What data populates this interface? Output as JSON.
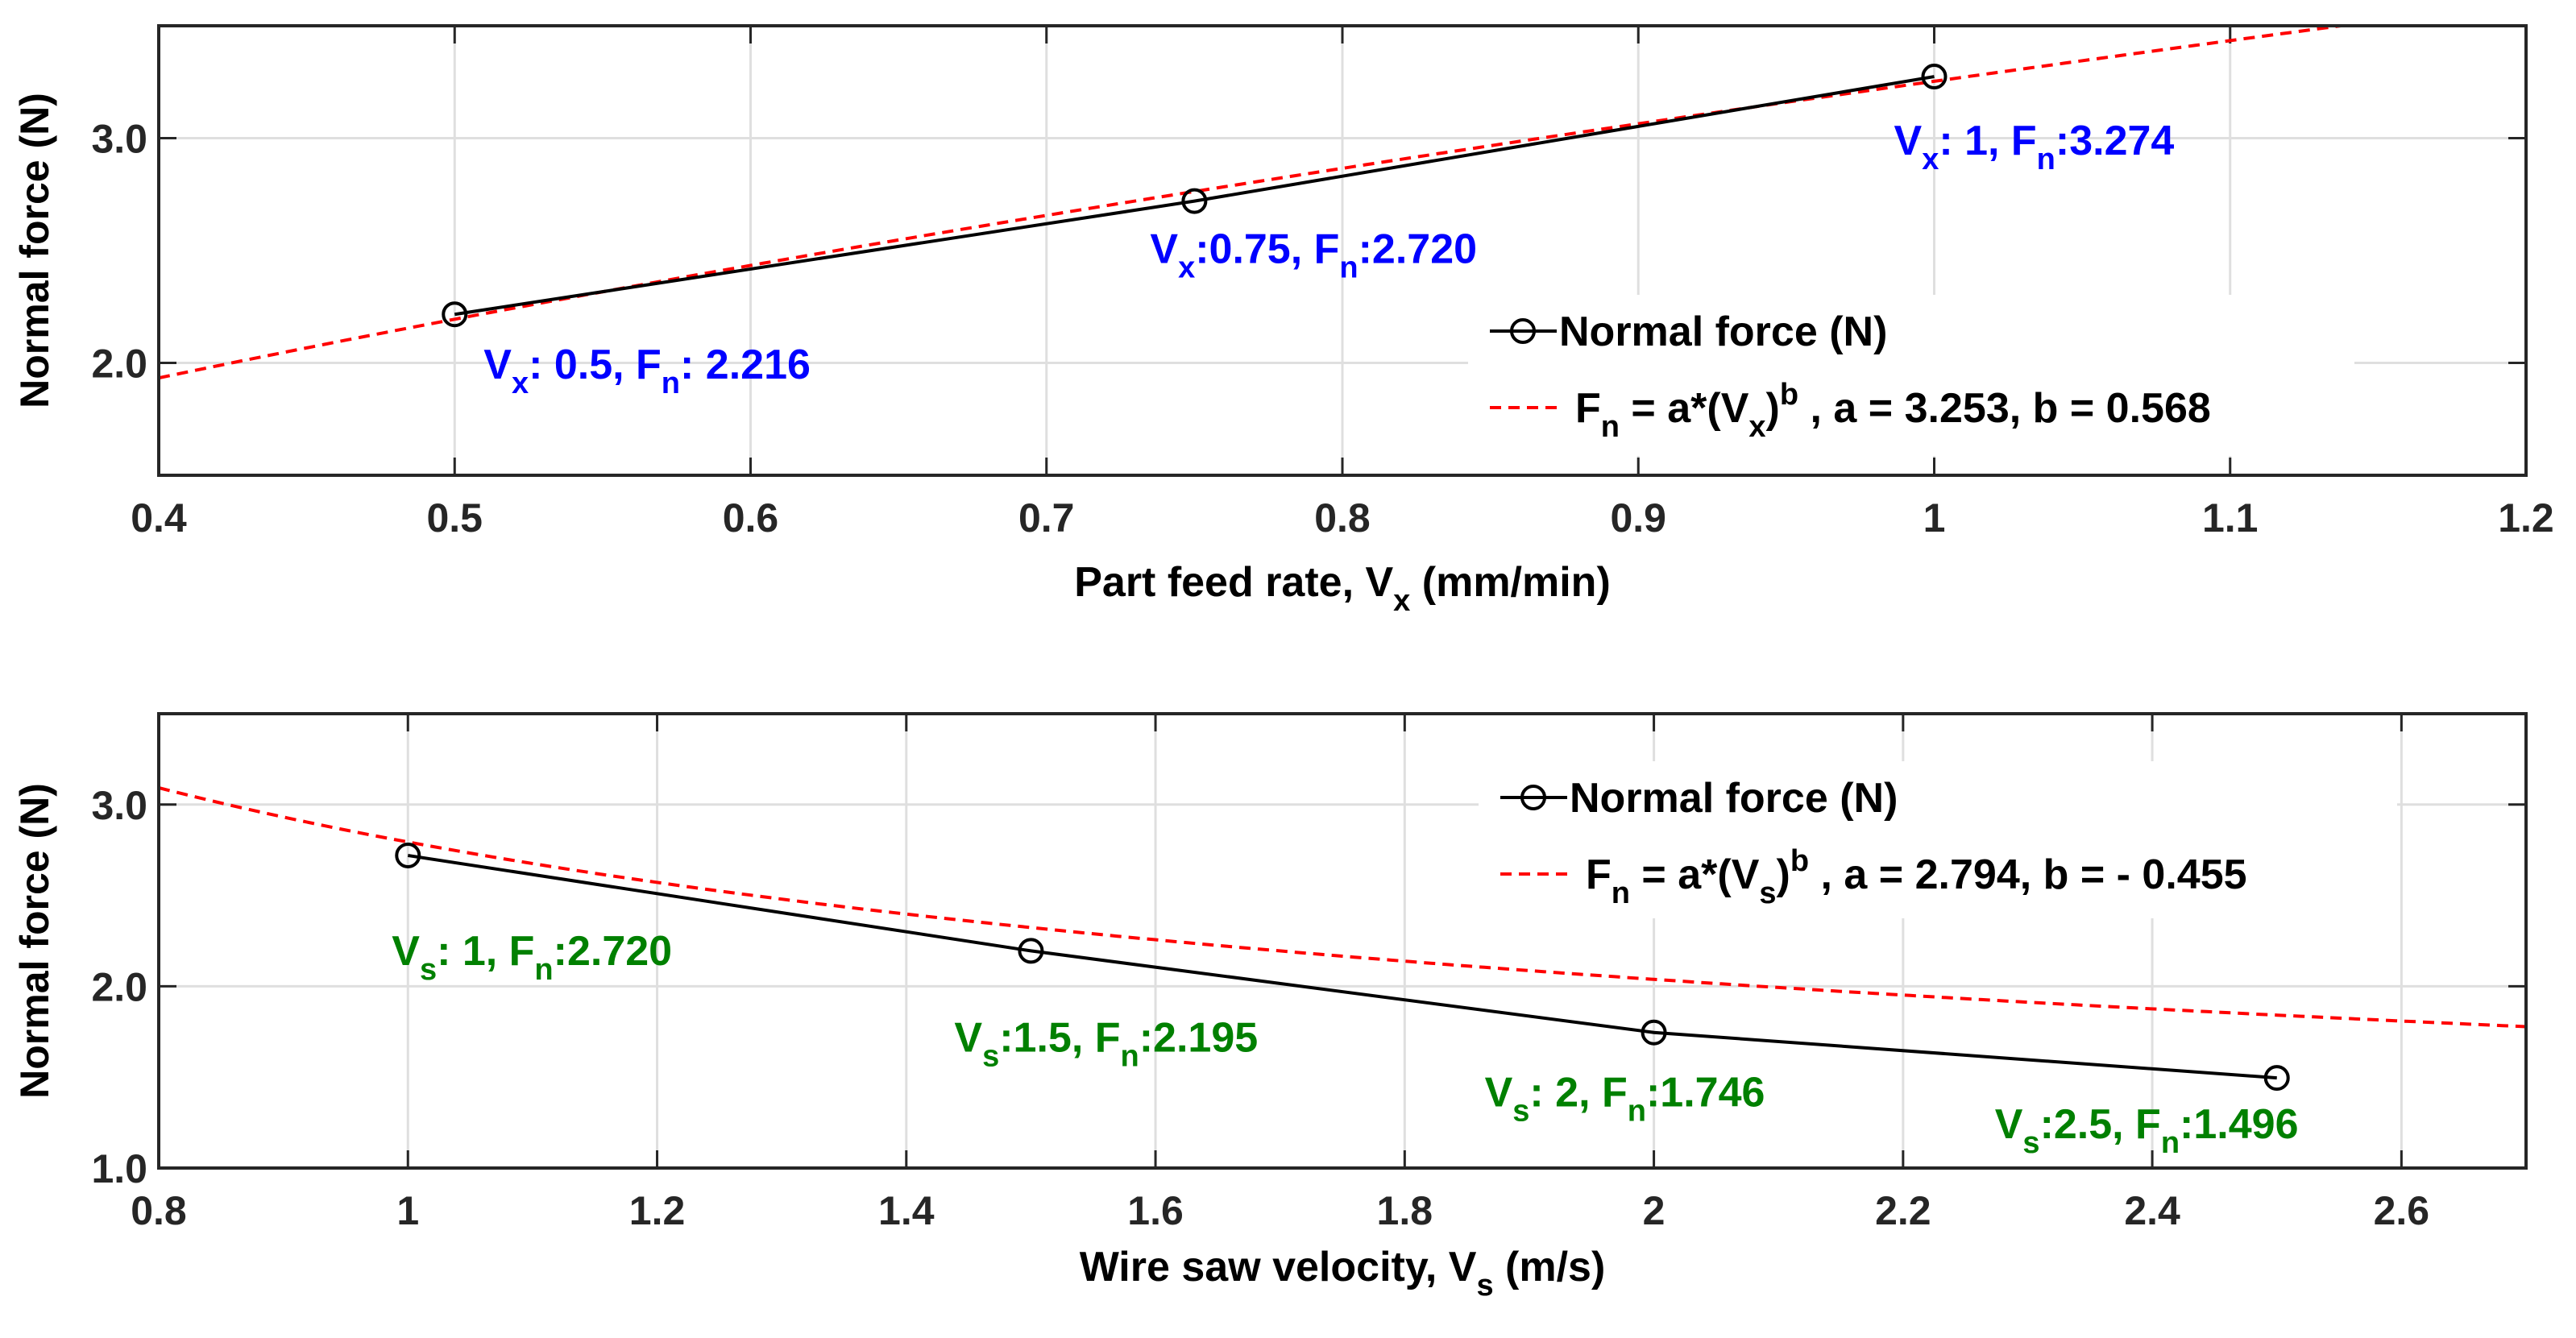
{
  "chart_data": [
    {
      "type": "line",
      "xlabel_parts": [
        "Part feed rate, V",
        "x",
        " (mm/min)"
      ],
      "ylabel": "Normal force (N)",
      "xlim": [
        0.4,
        1.2
      ],
      "ylim": [
        1.5,
        3.5
      ],
      "xticks": [
        0.4,
        0.5,
        0.6,
        0.7,
        0.8,
        0.9,
        1,
        1.1,
        1.2
      ],
      "xtick_labels": [
        "0.4",
        "0.5",
        "0.6",
        "0.7",
        "0.8",
        "0.9",
        "1",
        "1.1",
        "1.2"
      ],
      "yticks": [
        2.0,
        3.0
      ],
      "ytick_labels": [
        "2.0",
        "3.0"
      ],
      "grid": true,
      "label_color": "#0000ff",
      "series": [
        {
          "name": "Normal force (N)",
          "style": "solid-circle",
          "color": "#000000",
          "x": [
            0.5,
            0.75,
            1.0
          ],
          "y": [
            2.216,
            2.72,
            3.274
          ]
        },
        {
          "style": "dashed",
          "color": "#ff0000",
          "fit": {
            "a": 3.253,
            "b": 0.568,
            "x_range": [
              0.4,
              1.2
            ]
          }
        }
      ],
      "legend": {
        "location": "bottom-right",
        "entries": [
          [
            "Normal force (N)"
          ],
          [
            "F",
            "n",
            " = a*(V",
            "x",
            ")",
            "b",
            " , a = 3.253, b = 0.568"
          ]
        ]
      },
      "annotations": [
        {
          "x": 0.5,
          "y": 2.216,
          "parts": [
            "V",
            "x",
            ": 0.5, F",
            "n",
            ": 2.216"
          ]
        },
        {
          "x": 0.75,
          "y": 2.72,
          "parts": [
            "V",
            "x",
            ":0.75, F",
            "n",
            ":2.720"
          ]
        },
        {
          "x": 1.0,
          "y": 3.274,
          "parts": [
            "V",
            "x",
            ":   1, F",
            "n",
            ":3.274"
          ]
        }
      ]
    },
    {
      "type": "line",
      "xlabel_parts": [
        "Wire saw velocity, V",
        "s",
        " (m/s)"
      ],
      "ylabel": "Normal force (N)",
      "xlim": [
        0.8,
        2.7
      ],
      "ylim": [
        1.0,
        3.5
      ],
      "xticks": [
        0.8,
        1,
        1.2,
        1.4,
        1.6,
        1.8,
        2,
        2.2,
        2.4,
        2.6
      ],
      "xtick_labels": [
        "0.8",
        "1",
        "1.2",
        "1.4",
        "1.6",
        "1.8",
        "2",
        "2.2",
        "2.4",
        "2.6"
      ],
      "yticks": [
        1.0,
        2.0,
        3.0
      ],
      "ytick_labels": [
        "1.0",
        "2.0",
        "3.0"
      ],
      "grid": true,
      "label_color": "#008000",
      "series": [
        {
          "name": "Normal force (N)",
          "style": "solid-circle",
          "color": "#000000",
          "x": [
            1.0,
            1.5,
            2.0,
            2.5
          ],
          "y": [
            2.72,
            2.195,
            1.746,
            1.496
          ]
        },
        {
          "style": "dashed",
          "color": "#ff0000",
          "fit": {
            "a": 2.794,
            "b": -0.455,
            "x_range": [
              0.8,
              2.7
            ]
          }
        }
      ],
      "legend": {
        "location": "top-right",
        "entries": [
          [
            "Normal force (N)"
          ],
          [
            "F",
            "n",
            " = a*(V",
            "s",
            ")",
            "b",
            " , a = 2.794, b = - 0.455"
          ]
        ]
      },
      "annotations": [
        {
          "x": 1.0,
          "y": 2.72,
          "parts": [
            "V",
            "s",
            ":  1, F",
            "n",
            ":2.720"
          ]
        },
        {
          "x": 1.5,
          "y": 2.195,
          "parts": [
            "V",
            "s",
            ":1.5, F",
            "n",
            ":2.195"
          ]
        },
        {
          "x": 2.0,
          "y": 1.746,
          "parts": [
            "V",
            "s",
            ":  2, F",
            "n",
            ":1.746"
          ]
        },
        {
          "x": 2.5,
          "y": 1.496,
          "parts": [
            "V",
            "s",
            ":2.5, F",
            "n",
            ":1.496"
          ]
        }
      ]
    }
  ]
}
